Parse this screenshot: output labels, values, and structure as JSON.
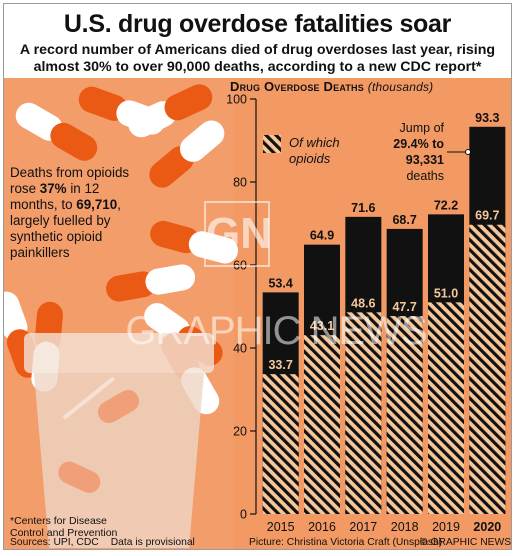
{
  "header": {
    "title": "U.S. drug overdose fatalities soar",
    "subtitle": "A record number of Americans died of drug overdoses last year, rising almost 30% to over 90,000 deaths, according to a new CDC report*"
  },
  "side_note": {
    "text_1": "Deaths from opioids rose ",
    "highlight_1": "37%",
    "text_2": " in 12 months, to ",
    "highlight_2": "69,710",
    "text_3": ", largely fuelled by synthetic opioid painkillers"
  },
  "footer": {
    "footnote_line1": "*Centers for Disease",
    "footnote_line2": "Control and Prevention",
    "sources": "Sources: UPI, CDC",
    "provisional": "Data is provisional",
    "picture_credit": "Picture: Christina Victoria Craft (Unsplash)",
    "copyright": "© GRAPHIC NEWS"
  },
  "watermark": {
    "logo": "GN",
    "text": "GRAPHIC NEWS"
  },
  "colors": {
    "background_photo": "#f39a64",
    "bar_total": "#111111",
    "bar_opioid_hatch": "#f6c79a",
    "text": "#111111",
    "capsule_orange": "#ea5a14",
    "capsule_white": "#ffffff"
  },
  "chart_data": {
    "type": "bar",
    "title": "Drug Overdose Deaths",
    "unit": "(thousands)",
    "categories": [
      "2015",
      "2016",
      "2017",
      "2018",
      "2019",
      "2020"
    ],
    "series": [
      {
        "name": "",
        "values": [
          53.4,
          64.9,
          71.6,
          68.7,
          72.2,
          93.3
        ],
        "value_labels": [
          "53.4",
          "64.9",
          "71.6",
          "68.7",
          "72.2",
          "93.3"
        ]
      },
      {
        "name": "Of which opioids",
        "values": [
          33.7,
          43.1,
          48.6,
          47.7,
          51.0,
          69.7
        ],
        "value_labels": [
          "33.7",
          "43.1",
          "48.6",
          "47.7",
          "51.0",
          "69.7"
        ]
      }
    ],
    "ylim": [
      0,
      100
    ],
    "yticks": [
      0,
      20,
      40,
      60,
      80,
      100
    ],
    "grid": false,
    "legend": {
      "label_line1": "Of which",
      "label_line2": "opioids",
      "placement": "top-left"
    },
    "annotation": {
      "category": "2020",
      "line1": "Jump of",
      "line2": "29.4% to",
      "line3": "93,331",
      "line4": "deaths"
    }
  }
}
